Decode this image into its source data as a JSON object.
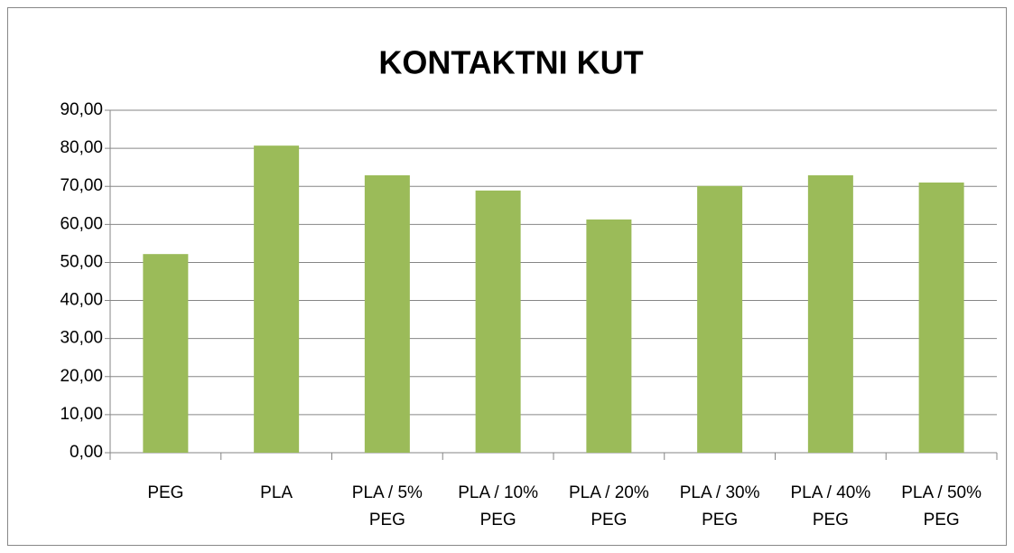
{
  "chart_data": {
    "type": "bar",
    "title": "KONTAKTNI KUT",
    "categories": [
      "PEG",
      "PLA",
      "PLA / 5% PEG",
      "PLA / 10% PEG",
      "PLA / 20% PEG",
      "PLA / 30% PEG",
      "PLA / 40% PEG",
      "PLA / 50% PEG"
    ],
    "values": [
      52.2,
      80.7,
      72.9,
      68.9,
      61.3,
      70.1,
      72.9,
      71.0
    ],
    "color": "#9bbb59",
    "ylim": [
      0,
      90
    ],
    "yticks": [
      {
        "value": 0,
        "label": "0,00"
      },
      {
        "value": 10,
        "label": "10,00"
      },
      {
        "value": 20,
        "label": "20,00"
      },
      {
        "value": 30,
        "label": "30,00"
      },
      {
        "value": 40,
        "label": "40,00"
      },
      {
        "value": 50,
        "label": "50,00"
      },
      {
        "value": 60,
        "label": "60,00"
      },
      {
        "value": 70,
        "label": "70,00"
      },
      {
        "value": 80,
        "label": "80,00"
      },
      {
        "value": 90,
        "label": "90,00"
      }
    ],
    "grid": true
  }
}
